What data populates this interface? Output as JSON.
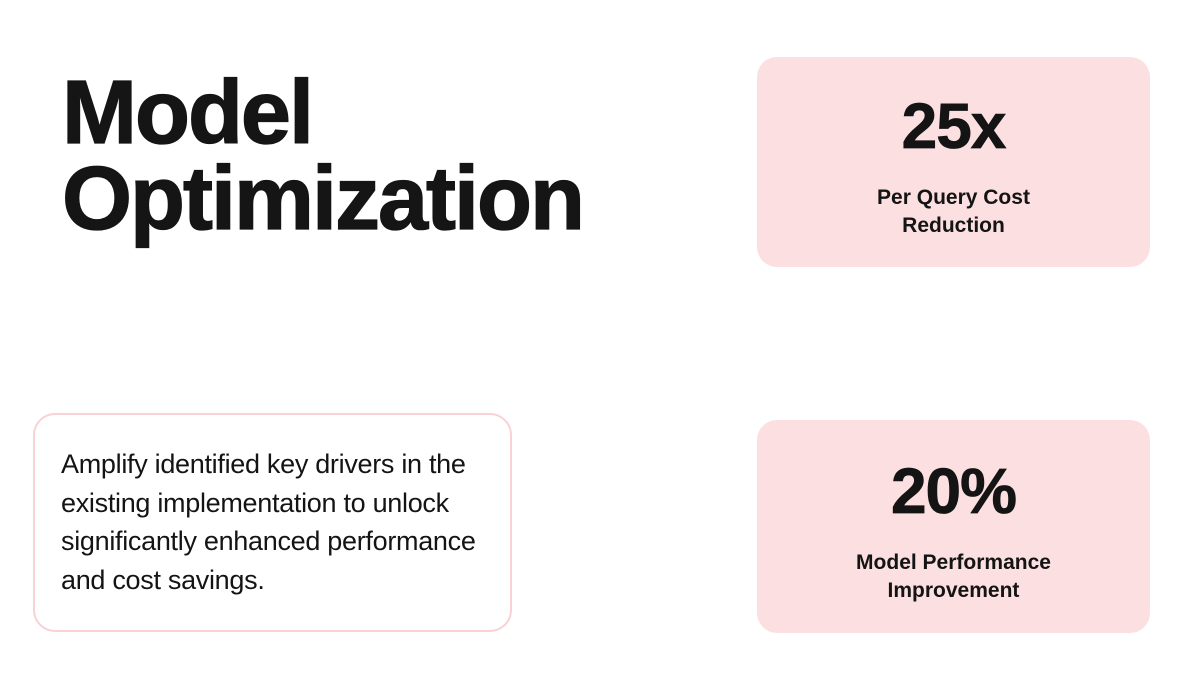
{
  "slide": {
    "title": "Model Optimization",
    "description": "Amplify identified key drivers in the existing implementation to unlock significantly enhanced performance and cost savings.",
    "stats": [
      {
        "value": "25x",
        "label_line1": "Per Query Cost",
        "label_line2": "Reduction"
      },
      {
        "value": "20%",
        "label_line1": "Model Performance",
        "label_line2": "Improvement"
      }
    ],
    "colors": {
      "background": "#ffffff",
      "card_pink": "#fcdfe1",
      "card_border_pink": "#f8d2d6",
      "text": "#141414"
    }
  }
}
